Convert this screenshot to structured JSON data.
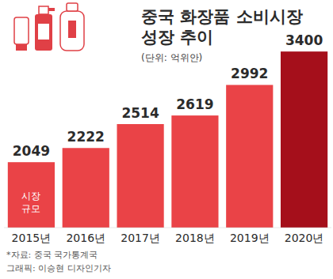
{
  "chart_data": {
    "type": "bar",
    "title": [
      "중국 화장품 소비시장",
      "성장 추이"
    ],
    "subtitle": "(단위: 억위안)",
    "annotation": [
      "시장",
      "규모"
    ],
    "source": "*자료: 중국 국가통계국",
    "credit": "그래픽: 이승현 디자인기자",
    "categories": [
      "2015년",
      "2016년",
      "2017년",
      "2018년",
      "2019년",
      "2020년"
    ],
    "values": [
      2049,
      2222,
      2514,
      2619,
      2992,
      3400
    ],
    "colors": [
      "#ea4347",
      "#ea4347",
      "#ea4347",
      "#ea4347",
      "#ea4347",
      "#a50f1b"
    ],
    "ylim": [
      1250,
      3450
    ],
    "grid": false,
    "data_labels": true,
    "tick_labels": "x"
  }
}
